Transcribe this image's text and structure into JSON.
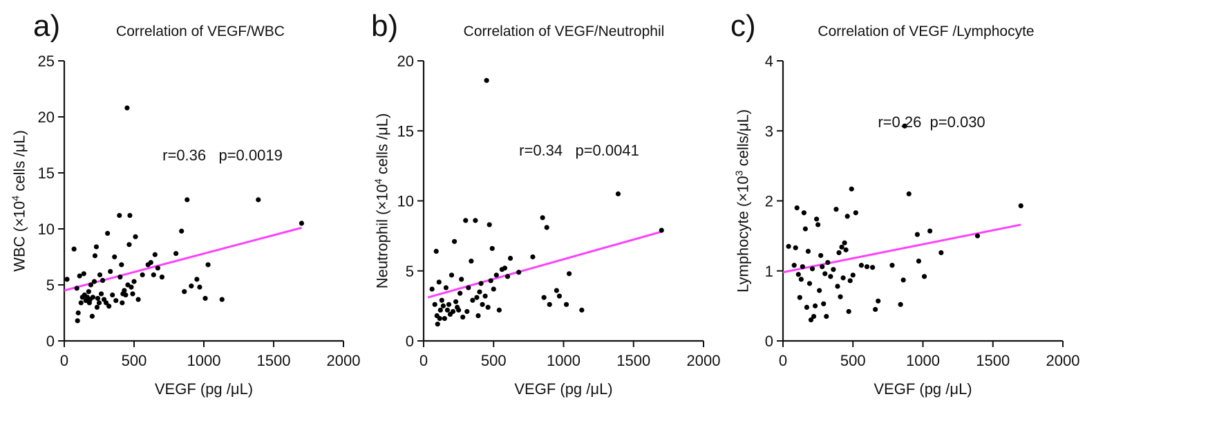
{
  "figure": {
    "line_color": "#ff40ff",
    "point_color": "#000000"
  },
  "chart_data": [
    {
      "type": "scatter",
      "panel_label": "a)",
      "title": "Correlation of VEGF/WBC",
      "xlabel": "VEGF (pg /μL)",
      "ylabel": "WBC (×10⁴ cells /μL)",
      "xlim": [
        0,
        2000
      ],
      "ylim": [
        0,
        25
      ],
      "xticks": [
        "0",
        "500",
        "1000",
        "1500",
        "2000"
      ],
      "yticks": [
        "0",
        "5",
        "10",
        "15",
        "20",
        "25"
      ],
      "grid": false,
      "annotation": "r=0.36   p=0.0019",
      "fit_line": {
        "x": [
          0,
          1700
        ],
        "y": [
          4.5,
          10.1
        ]
      },
      "points": [
        [
          20,
          5.5
        ],
        [
          70,
          8.2
        ],
        [
          90,
          4.7
        ],
        [
          95,
          1.8
        ],
        [
          100,
          2.5
        ],
        [
          110,
          5.8
        ],
        [
          120,
          3.4
        ],
        [
          130,
          3.9
        ],
        [
          140,
          6.0
        ],
        [
          145,
          4.1
        ],
        [
          155,
          3.6
        ],
        [
          165,
          3.9
        ],
        [
          175,
          4.4
        ],
        [
          180,
          3.4
        ],
        [
          185,
          3.7
        ],
        [
          190,
          5.0
        ],
        [
          200,
          2.2
        ],
        [
          205,
          3.9
        ],
        [
          215,
          5.3
        ],
        [
          220,
          7.6
        ],
        [
          230,
          8.4
        ],
        [
          235,
          3.0
        ],
        [
          240,
          3.8
        ],
        [
          250,
          3.4
        ],
        [
          255,
          5.9
        ],
        [
          265,
          4.2
        ],
        [
          275,
          5.4
        ],
        [
          285,
          3.7
        ],
        [
          300,
          3.4
        ],
        [
          310,
          9.6
        ],
        [
          320,
          3.1
        ],
        [
          330,
          6.2
        ],
        [
          345,
          4.1
        ],
        [
          360,
          7.5
        ],
        [
          370,
          3.6
        ],
        [
          395,
          11.2
        ],
        [
          400,
          5.7
        ],
        [
          410,
          6.8
        ],
        [
          415,
          3.4
        ],
        [
          420,
          4.2
        ],
        [
          430,
          4.5
        ],
        [
          440,
          4.1
        ],
        [
          450,
          20.8
        ],
        [
          455,
          5.0
        ],
        [
          465,
          8.6
        ],
        [
          470,
          11.2
        ],
        [
          480,
          4.8
        ],
        [
          490,
          4.2
        ],
        [
          500,
          5.3
        ],
        [
          510,
          9.3
        ],
        [
          530,
          3.7
        ],
        [
          560,
          5.9
        ],
        [
          600,
          6.8
        ],
        [
          620,
          7.0
        ],
        [
          640,
          5.9
        ],
        [
          650,
          7.7
        ],
        [
          670,
          6.5
        ],
        [
          700,
          5.7
        ],
        [
          800,
          7.8
        ],
        [
          840,
          9.8
        ],
        [
          860,
          4.4
        ],
        [
          880,
          12.6
        ],
        [
          910,
          4.9
        ],
        [
          950,
          5.5
        ],
        [
          970,
          4.8
        ],
        [
          1010,
          3.8
        ],
        [
          1030,
          6.8
        ],
        [
          1130,
          3.7
        ],
        [
          1390,
          12.6
        ],
        [
          1700,
          10.5
        ]
      ]
    },
    {
      "type": "scatter",
      "panel_label": "b)",
      "title": "Correlation of VEGF/Neutrophil",
      "xlabel": "VEGF (pg /μL)",
      "ylabel": "Neutrophil (×10⁴ cells /μL)",
      "xlim": [
        0,
        2000
      ],
      "ylim": [
        0,
        20
      ],
      "xticks": [
        "0",
        "500",
        "1000",
        "1500",
        "2000"
      ],
      "yticks": [
        "0",
        "5",
        "10",
        "15",
        "20"
      ],
      "grid": false,
      "annotation": "r=0.34   p=0.0041",
      "fit_line": {
        "x": [
          30,
          1700
        ],
        "y": [
          3.1,
          7.8
        ]
      },
      "points": [
        [
          60,
          3.7
        ],
        [
          80,
          2.6
        ],
        [
          90,
          6.4
        ],
        [
          95,
          1.8
        ],
        [
          100,
          1.2
        ],
        [
          110,
          4.2
        ],
        [
          115,
          1.6
        ],
        [
          120,
          2.2
        ],
        [
          130,
          2.9
        ],
        [
          140,
          2.5
        ],
        [
          150,
          1.6
        ],
        [
          160,
          3.8
        ],
        [
          170,
          2.2
        ],
        [
          180,
          2.6
        ],
        [
          190,
          1.9
        ],
        [
          200,
          4.7
        ],
        [
          210,
          2.1
        ],
        [
          220,
          7.1
        ],
        [
          230,
          2.8
        ],
        [
          240,
          2.4
        ],
        [
          250,
          2.2
        ],
        [
          260,
          3.4
        ],
        [
          270,
          4.4
        ],
        [
          280,
          1.7
        ],
        [
          300,
          8.6
        ],
        [
          310,
          2.1
        ],
        [
          320,
          3.8
        ],
        [
          340,
          5.7
        ],
        [
          350,
          2.9
        ],
        [
          370,
          8.6
        ],
        [
          380,
          3.1
        ],
        [
          390,
          1.8
        ],
        [
          400,
          3.5
        ],
        [
          410,
          4.1
        ],
        [
          420,
          2.6
        ],
        [
          440,
          3.2
        ],
        [
          450,
          18.6
        ],
        [
          460,
          2.4
        ],
        [
          470,
          8.3
        ],
        [
          480,
          4.3
        ],
        [
          490,
          6.6
        ],
        [
          500,
          3.7
        ],
        [
          520,
          4.7
        ],
        [
          540,
          2.2
        ],
        [
          560,
          5.1
        ],
        [
          580,
          5.2
        ],
        [
          600,
          4.6
        ],
        [
          620,
          5.9
        ],
        [
          680,
          4.9
        ],
        [
          780,
          6.0
        ],
        [
          850,
          8.8
        ],
        [
          860,
          3.1
        ],
        [
          880,
          8.1
        ],
        [
          900,
          2.6
        ],
        [
          950,
          3.6
        ],
        [
          970,
          3.2
        ],
        [
          1020,
          2.6
        ],
        [
          1040,
          4.8
        ],
        [
          1130,
          2.2
        ],
        [
          1390,
          10.5
        ],
        [
          1700,
          7.9
        ]
      ]
    },
    {
      "type": "scatter",
      "panel_label": "c)",
      "title": "Correlation of VEGF /Lymphocyte",
      "xlabel": "VEGF (pg /μL)",
      "ylabel": "Lymphocyte  (×10³ cells/μL)",
      "xlim": [
        0,
        2000
      ],
      "ylim": [
        0,
        4
      ],
      "xticks": [
        "0",
        "500",
        "1000",
        "1500",
        "2000"
      ],
      "yticks": [
        "0",
        "1",
        "2",
        "3",
        "4"
      ],
      "grid": false,
      "annotation": "r=0.26  p=0.030",
      "fit_line": {
        "x": [
          0,
          1700
        ],
        "y": [
          0.98,
          1.66
        ]
      },
      "points": [
        [
          40,
          1.35
        ],
        [
          80,
          1.08
        ],
        [
          90,
          1.33
        ],
        [
          100,
          1.9
        ],
        [
          110,
          0.95
        ],
        [
          120,
          0.62
        ],
        [
          130,
          0.88
        ],
        [
          140,
          1.06
        ],
        [
          150,
          1.83
        ],
        [
          160,
          1.6
        ],
        [
          170,
          0.48
        ],
        [
          180,
          1.28
        ],
        [
          190,
          0.82
        ],
        [
          200,
          0.3
        ],
        [
          210,
          1.03
        ],
        [
          220,
          0.35
        ],
        [
          230,
          0.5
        ],
        [
          240,
          1.74
        ],
        [
          250,
          1.66
        ],
        [
          260,
          0.72
        ],
        [
          270,
          1.22
        ],
        [
          280,
          1.06
        ],
        [
          290,
          0.53
        ],
        [
          300,
          0.96
        ],
        [
          310,
          0.35
        ],
        [
          320,
          1.12
        ],
        [
          340,
          0.92
        ],
        [
          360,
          1.02
        ],
        [
          380,
          1.88
        ],
        [
          390,
          0.78
        ],
        [
          400,
          1.26
        ],
        [
          410,
          0.63
        ],
        [
          420,
          1.34
        ],
        [
          430,
          0.9
        ],
        [
          440,
          1.4
        ],
        [
          450,
          1.3
        ],
        [
          460,
          1.78
        ],
        [
          470,
          0.42
        ],
        [
          480,
          0.86
        ],
        [
          490,
          2.17
        ],
        [
          500,
          0.94
        ],
        [
          520,
          1.83
        ],
        [
          560,
          1.08
        ],
        [
          600,
          1.06
        ],
        [
          640,
          1.05
        ],
        [
          660,
          0.45
        ],
        [
          680,
          0.57
        ],
        [
          780,
          1.08
        ],
        [
          840,
          0.52
        ],
        [
          860,
          0.87
        ],
        [
          870,
          3.07
        ],
        [
          900,
          2.1
        ],
        [
          960,
          1.52
        ],
        [
          970,
          1.14
        ],
        [
          1010,
          0.92
        ],
        [
          1050,
          1.57
        ],
        [
          1130,
          1.26
        ],
        [
          1390,
          1.5
        ],
        [
          1700,
          1.93
        ]
      ]
    }
  ]
}
